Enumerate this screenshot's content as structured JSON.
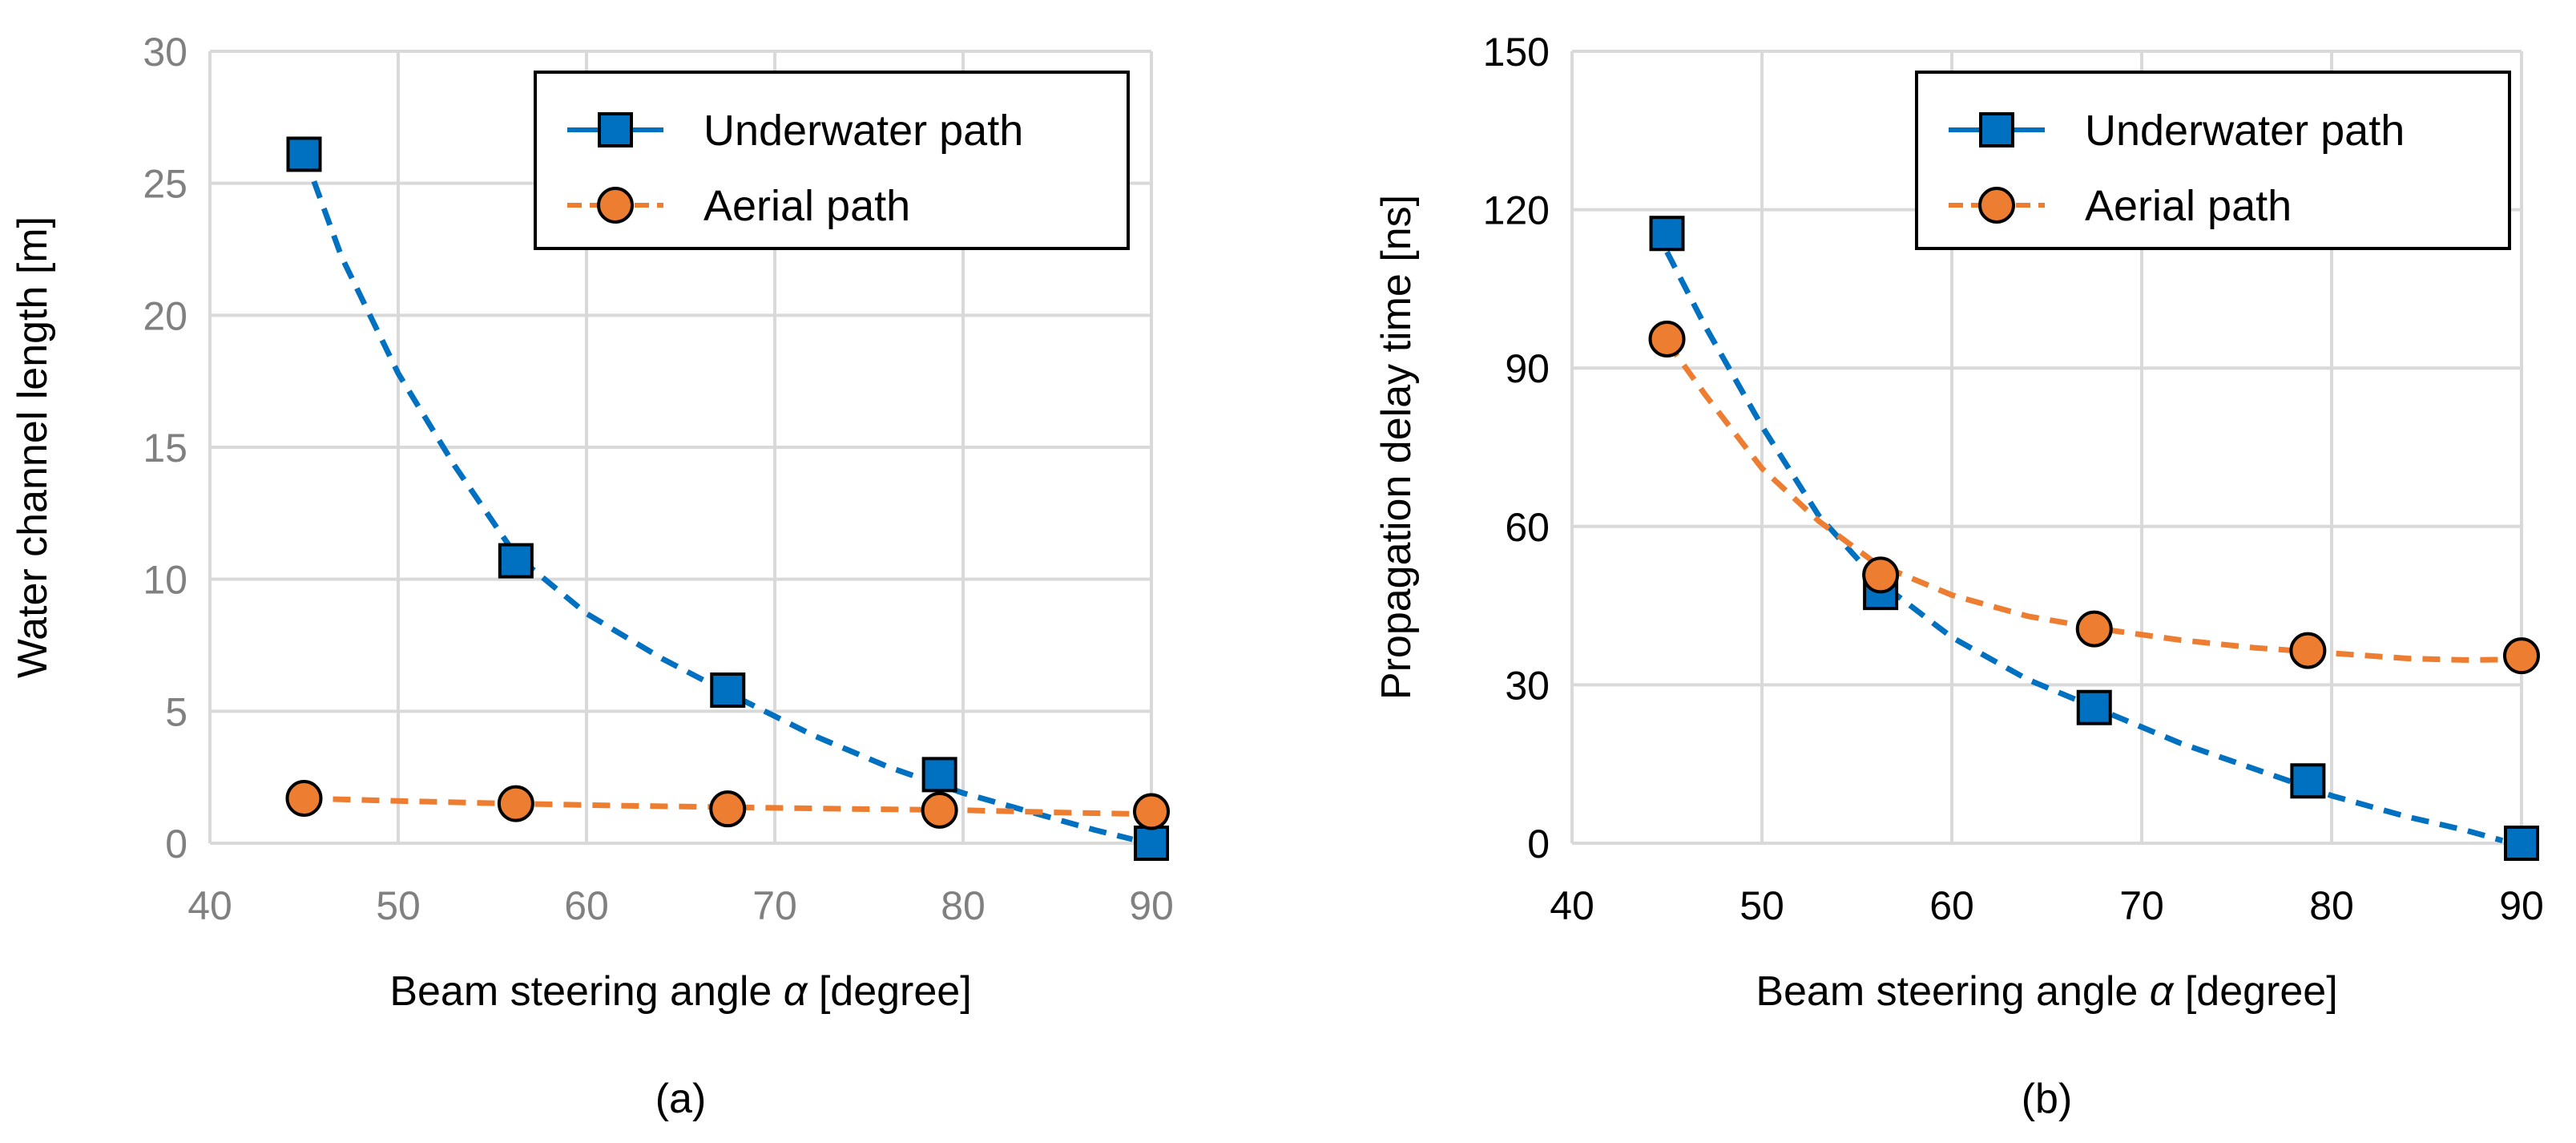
{
  "colors": {
    "underwater": "#0070c0",
    "aerial": "#ed7d31",
    "marker_edge": "#000000",
    "grid": "#d9d9d9",
    "tick_left": "#808080",
    "tick_right": "#000000"
  },
  "chart_data": [
    {
      "type": "scatter",
      "panel_label": "(a)",
      "title": "",
      "xlabel": "Beam steering angle",
      "xlabel_symbol": "α",
      "xlabel_unit": "[degree]",
      "ylabel": "Water channel length [m]",
      "xlim": [
        40,
        90
      ],
      "ylim": [
        0,
        30
      ],
      "xticks": [
        40,
        50,
        60,
        70,
        80,
        90
      ],
      "yticks": [
        0,
        5,
        10,
        15,
        20,
        25,
        30
      ],
      "grid": true,
      "legend_position": "top-right",
      "series": [
        {
          "name": "Underwater path",
          "marker": "square",
          "color_key": "underwater",
          "x": [
            45,
            56.25,
            67.5,
            78.75,
            90
          ],
          "y": [
            26.1,
            10.7,
            5.8,
            2.6,
            0
          ],
          "trendline": {
            "kind": "dashed curve",
            "points": [
              [
                45,
                26.1
              ],
              [
                47,
                22.2
              ],
              [
                50,
                17.8
              ],
              [
                53,
                14.3
              ],
              [
                56.25,
                10.9
              ],
              [
                60,
                8.7
              ],
              [
                64,
                7.0
              ],
              [
                67.5,
                5.7
              ],
              [
                72,
                4.1
              ],
              [
                76,
                2.9
              ],
              [
                80,
                1.9
              ],
              [
                84,
                1.1
              ],
              [
                87,
                0.5
              ],
              [
                89,
                0.15
              ]
            ]
          }
        },
        {
          "name": "Aerial path",
          "marker": "circle",
          "color_key": "aerial",
          "x": [
            45,
            56.25,
            67.5,
            78.75,
            90
          ],
          "y": [
            1.7,
            1.5,
            1.3,
            1.25,
            1.2
          ],
          "trendline": {
            "kind": "dashed curve",
            "points": [
              [
                45,
                1.7
              ],
              [
                50,
                1.6
              ],
              [
                56,
                1.5
              ],
              [
                62,
                1.42
              ],
              [
                68,
                1.36
              ],
              [
                74,
                1.3
              ],
              [
                80,
                1.25
              ],
              [
                86,
                1.15
              ],
              [
                90,
                1.1
              ]
            ]
          }
        }
      ]
    },
    {
      "type": "scatter",
      "panel_label": "(b)",
      "title": "",
      "xlabel": "Beam steering angle",
      "xlabel_symbol": "α",
      "xlabel_unit": "[degree]",
      "ylabel": "Propagation delay time [ns]",
      "xlim": [
        40,
        90
      ],
      "ylim": [
        0,
        150
      ],
      "xticks": [
        40,
        50,
        60,
        70,
        80,
        90
      ],
      "yticks": [
        0,
        30,
        60,
        90,
        120,
        150
      ],
      "grid": true,
      "legend_position": "top-right",
      "series": [
        {
          "name": "Underwater path",
          "marker": "square",
          "color_key": "underwater",
          "x": [
            45,
            56.25,
            67.5,
            78.75,
            90
          ],
          "y": [
            115.5,
            47.5,
            25.7,
            11.8,
            0
          ],
          "trendline": {
            "kind": "dashed curve",
            "points": [
              [
                45,
                112
              ],
              [
                47,
                98
              ],
              [
                50,
                79
              ],
              [
                53,
                62
              ],
              [
                56,
                50
              ],
              [
                60,
                39
              ],
              [
                64,
                31
              ],
              [
                68,
                25
              ],
              [
                72,
                19
              ],
              [
                76,
                14
              ],
              [
                80,
                9
              ],
              [
                84,
                5
              ],
              [
                87,
                2.5
              ],
              [
                89,
                0.5
              ]
            ]
          }
        },
        {
          "name": "Aerial path",
          "marker": "circle",
          "color_key": "aerial",
          "x": [
            45,
            56.25,
            67.5,
            78.75,
            90
          ],
          "y": [
            95.5,
            50.8,
            40.6,
            36.5,
            35.5
          ],
          "trendline": {
            "kind": "dashed curve",
            "points": [
              [
                45,
                95
              ],
              [
                47,
                85
              ],
              [
                50,
                71
              ],
              [
                53,
                61
              ],
              [
                56,
                53
              ],
              [
                60,
                47
              ],
              [
                64,
                43
              ],
              [
                68,
                40.5
              ],
              [
                72,
                38.5
              ],
              [
                76,
                37
              ],
              [
                80,
                36
              ],
              [
                84,
                35
              ],
              [
                87,
                34.7
              ],
              [
                90,
                34.8
              ]
            ]
          }
        }
      ]
    }
  ]
}
